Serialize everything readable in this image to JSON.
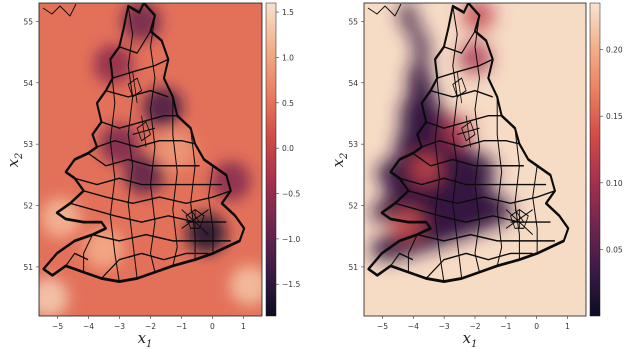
{
  "chart_data": [
    {
      "type": "heatmap",
      "title": "",
      "xlabel": "x",
      "xlabel_sub": "1",
      "ylabel": "x",
      "ylabel_sub": "2",
      "xlim": [
        -5.6,
        1.6
      ],
      "ylim": [
        50.2,
        55.3
      ],
      "xticks": [
        -5,
        -4,
        -3,
        -2,
        -1,
        0,
        1
      ],
      "yticks": [
        51,
        52,
        53,
        54,
        55
      ],
      "colorbar": {
        "range": [
          -1.85,
          1.6
        ],
        "ticks": [
          1.5,
          1.0,
          0.5,
          0.0,
          -0.5,
          -1.0,
          -1.5
        ],
        "tick_labels": [
          "1.5",
          "1.0",
          "0.5",
          "0.0",
          "−0.5",
          "−1.0",
          "−1.5"
        ],
        "colormap": [
          "#0c0c22",
          "#3a1a45",
          "#70264f",
          "#a5304e",
          "#d14a48",
          "#e97d5f",
          "#f3b08c",
          "#f7e3cf"
        ]
      },
      "base_value": 0.5,
      "hotspots": [
        {
          "x": -0.2,
          "y": 51.55,
          "value": -1.7
        },
        {
          "x": -2.2,
          "y": 52.5,
          "value": -1.1
        },
        {
          "x": -1.6,
          "y": 53.6,
          "value": -1.3
        },
        {
          "x": -3.0,
          "y": 53.0,
          "value": -0.8
        },
        {
          "x": -1.2,
          "y": 52.9,
          "value": 0.9
        },
        {
          "x": -3.2,
          "y": 54.3,
          "value": -0.6
        },
        {
          "x": -2.3,
          "y": 55.0,
          "value": -0.9
        },
        {
          "x": -4.9,
          "y": 51.8,
          "value": 1.2
        },
        {
          "x": -5.3,
          "y": 50.5,
          "value": 1.4
        },
        {
          "x": 1.2,
          "y": 50.7,
          "value": 1.3
        },
        {
          "x": -3.5,
          "y": 51.3,
          "value": 1.1
        },
        {
          "x": 0.6,
          "y": 52.4,
          "value": -0.7
        }
      ]
    },
    {
      "type": "heatmap",
      "title": "",
      "xlabel": "x",
      "xlabel_sub": "1",
      "ylabel": "x",
      "ylabel_sub": "2",
      "xlim": [
        -5.6,
        1.6
      ],
      "ylim": [
        50.2,
        55.3
      ],
      "xticks": [
        -5,
        -4,
        -3,
        -2,
        -1,
        0,
        1
      ],
      "yticks": [
        51,
        52,
        53,
        54,
        55
      ],
      "colorbar": {
        "range": [
          0.0,
          0.235
        ],
        "ticks": [
          0.2,
          0.15,
          0.1,
          0.05
        ],
        "tick_labels": [
          "0.20",
          "0.15",
          "0.10",
          "0.05"
        ],
        "colormap": [
          "#0c0c22",
          "#3a1a45",
          "#70264f",
          "#a5304e",
          "#d14a48",
          "#e97d5f",
          "#f3b08c",
          "#f7e3cf"
        ]
      },
      "inside_value": 0.03,
      "outside_value": 0.23,
      "hotspots": [
        {
          "x": -3.6,
          "y": 52.6,
          "value": 0.13
        },
        {
          "x": -2.6,
          "y": 53.2,
          "value": 0.11
        },
        {
          "x": -1.9,
          "y": 55.1,
          "value": 0.12
        },
        {
          "x": -4.2,
          "y": 51.7,
          "value": 0.14
        },
        {
          "x": -2.0,
          "y": 54.4,
          "value": 0.1
        }
      ]
    }
  ]
}
